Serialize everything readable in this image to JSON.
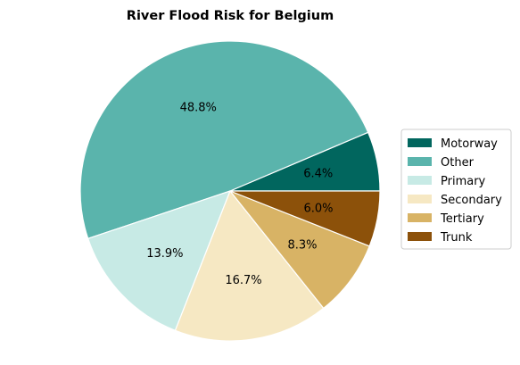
{
  "chart_data": {
    "type": "pie",
    "title": "River Flood Risk for Belgium",
    "start_angle_deg": 0,
    "direction": "counterclockwise",
    "slices": [
      {
        "label": "Motorway",
        "value": 6.4,
        "pct_label": "6.4%",
        "color": "#01665e"
      },
      {
        "label": "Other",
        "value": 48.8,
        "pct_label": "48.8%",
        "color": "#5ab4ac"
      },
      {
        "label": "Primary",
        "value": 13.9,
        "pct_label": "13.9%",
        "color": "#c7eae5"
      },
      {
        "label": "Secondary",
        "value": 16.7,
        "pct_label": "16.7%",
        "color": "#f6e8c3"
      },
      {
        "label": "Tertiary",
        "value": 8.3,
        "pct_label": "8.3%",
        "color": "#d8b365"
      },
      {
        "label": "Trunk",
        "value": 6.0,
        "pct_label": "6.0%",
        "color": "#8c510a"
      }
    ],
    "legend_position": "right",
    "slice_edge_color": "#ffffff"
  }
}
